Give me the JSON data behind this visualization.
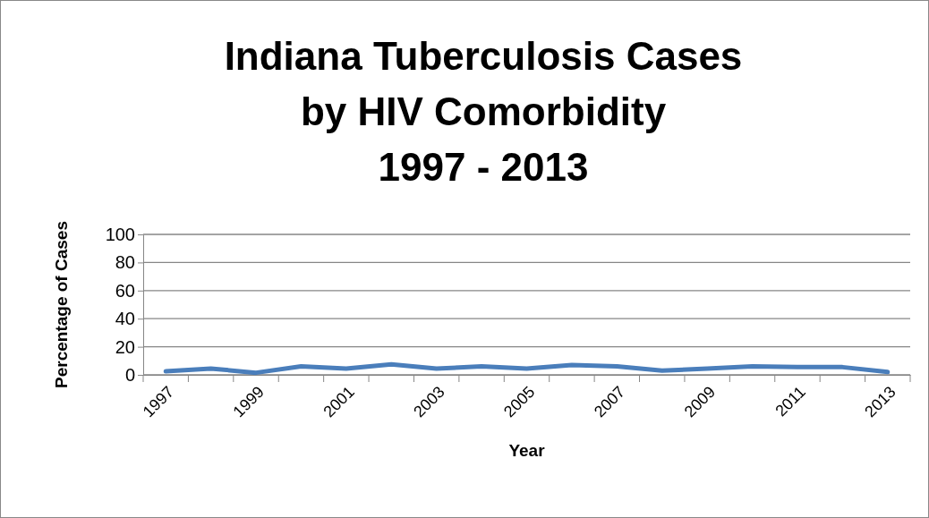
{
  "chart_data": {
    "type": "line",
    "title": "Indiana Tuberculosis Cases\nby HIV Comorbidity\n1997 - 2013",
    "xlabel": "Year",
    "ylabel": "Percentage of Cases",
    "categories": [
      "1997",
      null,
      "1999",
      null,
      "2001",
      null,
      "2003",
      null,
      "2005",
      null,
      "2007",
      null,
      "2009",
      null,
      "2011",
      null,
      "2013"
    ],
    "series": [
      {
        "color": "#4a7ebb",
        "values": [
          2.5,
          4.5,
          1.5,
          6,
          4.5,
          7.5,
          4.5,
          6,
          4.5,
          7,
          6,
          3,
          4.5,
          6,
          5.5,
          5.5,
          2
        ]
      }
    ],
    "ylim": [
      0,
      100
    ],
    "yticks": [
      0,
      20,
      40,
      60,
      80,
      100
    ],
    "grid": "y",
    "marker": "none",
    "line_style": "solid"
  }
}
